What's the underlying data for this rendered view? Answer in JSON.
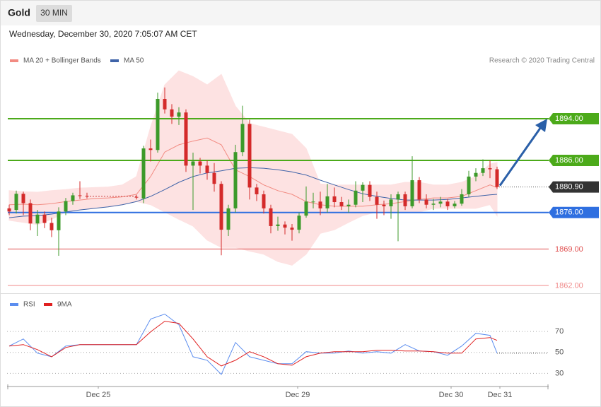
{
  "header": {
    "title": "Gold",
    "interval": "30 MIN",
    "timestamp": "Wednesday, December 30, 2020 7:05:07 AM CET"
  },
  "chart_data": [
    {
      "type": "candlestick",
      "credit": "Research © 2020 Trading Central",
      "up_color": "#3c9a2a",
      "down_color": "#d42a2a",
      "xlim": [
        -0.3,
        76.2
      ],
      "ylim": [
        1861,
        1909
      ],
      "ohlc": [
        [
          1876.8,
          1877.5,
          1875.5,
          1876.2
        ],
        [
          1876.5,
          1880.2,
          1875.8,
          1879.6
        ],
        [
          1879.6,
          1880.0,
          1875.5,
          1877.8
        ],
        [
          1877.8,
          1878.5,
          1872.6,
          1873.9
        ],
        [
          1873.9,
          1876.5,
          1871.5,
          1875.6
        ],
        [
          1875.6,
          1876.2,
          1873.0,
          1874.0
        ],
        [
          1874.0,
          1875.0,
          1871.3,
          1872.6
        ],
        [
          1872.6,
          1877.0,
          1867.7,
          1876.2
        ],
        [
          1876.2,
          1878.8,
          1875.5,
          1878.2
        ],
        [
          1878.2,
          1879.8,
          1877.5,
          1879.3
        ],
        [
          1879.3,
          1882.0,
          1878.6,
          1879.2
        ],
        [
          1879.2,
          1879.8,
          1878.7,
          1879.1
        ],
        null,
        null,
        null,
        null,
        null,
        null,
        [
          1879.0,
          1879.4,
          1878.5,
          1878.9
        ],
        [
          1878.7,
          1888.8,
          1877.8,
          1888.3
        ],
        [
          1888.3,
          1890.0,
          1885.8,
          1888.0
        ],
        [
          1888.0,
          1899.0,
          1887.5,
          1897.8
        ],
        [
          1897.8,
          1900.0,
          1895.0,
          1895.8
        ],
        [
          1895.8,
          1896.8,
          1893.0,
          1894.4
        ],
        [
          1894.4,
          1896.2,
          1892.8,
          1895.2
        ],
        [
          1895.2,
          1895.8,
          1883.8,
          1885.0
        ],
        [
          1885.0,
          1887.5,
          1876.5,
          1885.8
        ],
        [
          1885.8,
          1886.5,
          1883.5,
          1885.0
        ],
        [
          1885.0,
          1886.0,
          1882.3,
          1883.6
        ],
        [
          1883.6,
          1885.5,
          1880.0,
          1881.5
        ],
        [
          1881.5,
          1882.0,
          1867.8,
          1872.7
        ],
        [
          1872.7,
          1877.5,
          1871.5,
          1876.8
        ],
        [
          1876.8,
          1889.0,
          1876.0,
          1887.6
        ],
        [
          1887.6,
          1896.5,
          1886.8,
          1893.0
        ],
        [
          1893.0,
          1893.8,
          1878.5,
          1880.8
        ],
        [
          1880.8,
          1881.5,
          1878.2,
          1879.5
        ],
        [
          1879.5,
          1880.2,
          1875.8,
          1876.8
        ],
        [
          1876.8,
          1877.5,
          1872.0,
          1873.4
        ],
        [
          1873.4,
          1875.2,
          1872.5,
          1873.7
        ],
        [
          1873.7,
          1874.3,
          1871.8,
          1873.1
        ],
        [
          1873.1,
          1873.8,
          1870.6,
          1872.7
        ],
        [
          1872.7,
          1876.0,
          1872.0,
          1875.4
        ],
        [
          1875.4,
          1881.0,
          1875.0,
          1878.1
        ],
        [
          1878.1,
          1879.8,
          1876.8,
          1878.1
        ],
        [
          1878.1,
          1880.0,
          1875.5,
          1876.8
        ],
        [
          1876.8,
          1881.5,
          1876.0,
          1879.1
        ],
        [
          1879.1,
          1880.8,
          1877.0,
          1878.0
        ],
        [
          1878.0,
          1879.0,
          1876.5,
          1877.2
        ],
        [
          1877.2,
          1878.5,
          1876.0,
          1877.5
        ],
        [
          1877.5,
          1882.0,
          1877.0,
          1880.2
        ],
        [
          1880.2,
          1881.8,
          1878.0,
          1881.3
        ],
        [
          1881.3,
          1882.0,
          1878.2,
          1879.0
        ],
        [
          1879.0,
          1880.0,
          1874.8,
          1877.5
        ],
        [
          1877.5,
          1878.3,
          1875.5,
          1877.2
        ],
        [
          1877.2,
          1879.5,
          1874.8,
          1878.5
        ],
        [
          1878.5,
          1880.0,
          1870.5,
          1879.5
        ],
        [
          1879.5,
          1880.0,
          1876.5,
          1877.2
        ],
        [
          1877.2,
          1886.8,
          1876.8,
          1882.2
        ],
        [
          1882.2,
          1882.8,
          1877.8,
          1878.5
        ],
        [
          1878.5,
          1879.5,
          1876.8,
          1877.5
        ],
        [
          1877.5,
          1878.6,
          1876.5,
          1877.7
        ],
        [
          1877.7,
          1879.0,
          1877.0,
          1878.1
        ],
        [
          1878.1,
          1878.6,
          1876.5,
          1877.2
        ],
        [
          1877.2,
          1878.2,
          1876.8,
          1877.7
        ],
        [
          1877.7,
          1880.5,
          1877.3,
          1879.5
        ],
        [
          1879.5,
          1884.0,
          1879.0,
          1882.9
        ],
        [
          1882.9,
          1884.5,
          1882.0,
          1883.6
        ],
        [
          1883.6,
          1886.2,
          1883.0,
          1884.5
        ],
        [
          1884.5,
          1886.0,
          1882.6,
          1884.3
        ],
        [
          1884.3,
          1884.8,
          1880.5,
          1880.9
        ]
      ],
      "indicators": {
        "x": [
          0,
          2,
          4,
          6,
          8,
          10,
          12,
          14,
          16,
          18,
          20,
          22,
          24,
          26,
          28,
          30,
          32,
          34,
          36,
          38,
          40,
          42,
          44,
          46,
          48,
          50,
          52,
          54,
          56,
          58,
          60,
          62,
          64,
          66,
          68,
          69
        ],
        "series": [
          {
            "name": "MA 20 + Bollinger Bands",
            "color": "#f28b82",
            "band_color": "#fde2e2",
            "values": [
              1877.5,
              1877.6,
              1877.5,
              1877.7,
              1878.1,
              1878.4,
              1878.7,
              1878.8,
              1879.0,
              1879.5,
              1882.9,
              1887.6,
              1889.0,
              1889.7,
              1890.3,
              1889.0,
              1884.2,
              1882.9,
              1881.3,
              1880.2,
              1879.5,
              1878.1,
              1877.5,
              1877.2,
              1877.2,
              1877.2,
              1877.5,
              1877.7,
              1878.1,
              1878.5,
              1878.8,
              1878.8,
              1879.1,
              1880.2,
              1881.3,
              1880.8
            ],
            "upper": [
              1880.2,
              1880.0,
              1879.9,
              1880.2,
              1880.4,
              1880.7,
              1880.8,
              1880.9,
              1881.3,
              1882.9,
              1892.4,
              1900.5,
              1903.2,
              1902.1,
              1900.5,
              1902.5,
              1896.4,
              1893.1,
              1892.4,
              1891.7,
              1891.0,
              1888.3,
              1881.5,
              1881.3,
              1881.3,
              1881.3,
              1881.3,
              1881.3,
              1881.8,
              1881.8,
              1881.3,
              1881.3,
              1881.8,
              1882.9,
              1885.3,
              1885.6
            ],
            "lower": [
              1874.5,
              1874.1,
              1873.7,
              1874.7,
              1876.1,
              1876.5,
              1876.8,
              1877.1,
              1877.5,
              1878.1,
              1877.5,
              1876.1,
              1874.7,
              1873.4,
              1870.7,
              1869.3,
              1869.3,
              1868.6,
              1868.0,
              1866.6,
              1865.9,
              1868.0,
              1872.0,
              1872.7,
              1874.1,
              1875.4,
              1876.1,
              1876.1,
              1876.1,
              1876.1,
              1876.8,
              1876.8,
              1876.8,
              1876.8,
              1877.5,
              1875.4
            ]
          },
          {
            "name": "MA 50",
            "color": "#3f63a8",
            "values": [
              1875.0,
              1875.3,
              1875.4,
              1875.7,
              1876.1,
              1876.5,
              1876.8,
              1877.1,
              1877.5,
              1878.1,
              1879.1,
              1880.4,
              1881.8,
              1882.9,
              1883.6,
              1884.0,
              1884.5,
              1884.6,
              1884.5,
              1884.2,
              1883.8,
              1883.2,
              1882.2,
              1881.3,
              1880.4,
              1879.6,
              1879.1,
              1878.7,
              1878.4,
              1878.4,
              1878.4,
              1878.5,
              1878.8,
              1879.1,
              1879.4,
              1879.5
            ]
          }
        ]
      },
      "levels": [
        {
          "value": 1894,
          "label": "1894.00",
          "color": "#4caa1a",
          "tag": true
        },
        {
          "value": 1886,
          "label": "1886.00",
          "color": "#4caa1a",
          "tag": true
        },
        {
          "value": 1876,
          "label": "1876.00",
          "color": "#2f6fe0",
          "tag": true
        },
        {
          "value": 1869,
          "label": "1869.00",
          "color": "#e05050",
          "tag": false
        },
        {
          "value": 1862,
          "label": "1862.00",
          "color": "#f08a8a",
          "tag": false
        }
      ],
      "current": {
        "value": 1880.9,
        "label": "1880.90",
        "color": "#333333"
      }
    },
    {
      "type": "line",
      "xlim": [
        -0.3,
        76.2
      ],
      "ylim": [
        18,
        90
      ],
      "yticks": [
        30,
        50,
        70
      ],
      "xticks": [
        {
          "value": 12.6,
          "label": "Dec 25"
        },
        {
          "value": 40.8,
          "label": "Dec 29"
        },
        {
          "value": 62.5,
          "label": "Dec 30"
        },
        {
          "value": 69.4,
          "label": "Dec 31"
        }
      ],
      "x": [
        0,
        2,
        4,
        6,
        8,
        10,
        12,
        14,
        16,
        18,
        20,
        22,
        24,
        26,
        28,
        30,
        32,
        34,
        36,
        38,
        40,
        42,
        44,
        46,
        48,
        50,
        52,
        54,
        56,
        58,
        60,
        62,
        64,
        66,
        68,
        69
      ],
      "series": [
        {
          "name": "RSI",
          "color": "#5b8def",
          "values": [
            56.1,
            62.9,
            49.3,
            45.9,
            56.1,
            57.5,
            57.5,
            57.5,
            57.5,
            57.5,
            81.9,
            86.6,
            76.4,
            45.9,
            42.5,
            29.0,
            59.5,
            45.9,
            42.5,
            39.2,
            39.2,
            50.7,
            49.3,
            49.3,
            51.4,
            49.3,
            50.7,
            49.3,
            57.5,
            51.4,
            50.7,
            47.3,
            56.1,
            68.3,
            66.3,
            49.3
          ]
        },
        {
          "name": "9MA",
          "color": "#e02020",
          "values": [
            56.1,
            57.5,
            52.7,
            45.9,
            54.7,
            57.5,
            57.5,
            57.5,
            57.5,
            57.5,
            69.7,
            79.8,
            77.8,
            62.9,
            45.9,
            37.1,
            42.5,
            50.7,
            45.9,
            39.2,
            37.8,
            45.9,
            49.3,
            50.7,
            50.7,
            50.7,
            52.0,
            52.0,
            51.4,
            51.4,
            50.7,
            49.3,
            49.3,
            62.9,
            64.2,
            61.5
          ]
        }
      ]
    }
  ]
}
